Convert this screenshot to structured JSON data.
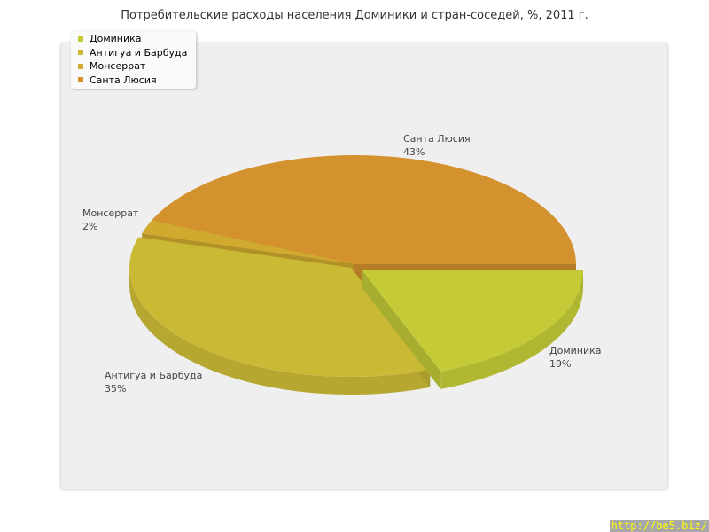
{
  "chart_data": {
    "type": "pie",
    "title": "Потребительские расходы населения Доминики и стран-соседей, %, 2011 г.",
    "legend_position": "top-left",
    "slices": [
      {
        "name": "Доминика",
        "value": 19,
        "label": "19%",
        "color": "#c4cb36",
        "exploded": true
      },
      {
        "name": "Антигуа и Барбуда",
        "value": 35,
        "label": "35%",
        "color": "#c9b935",
        "exploded": true
      },
      {
        "name": "Монсеррат",
        "value": 2,
        "label": "2%",
        "color": "#d0aa2f",
        "exploded": false
      },
      {
        "name": "Санта Люсия",
        "value": 43,
        "label": "43%",
        "color": "#d4922e",
        "exploded": false
      }
    ]
  },
  "watermark": "http://be5.biz/"
}
